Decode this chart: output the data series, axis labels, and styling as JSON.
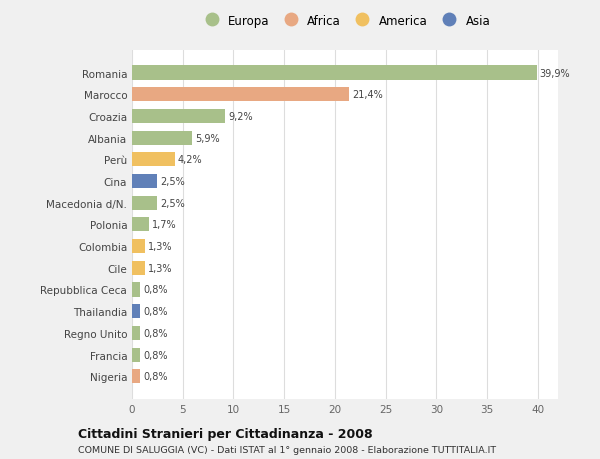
{
  "countries": [
    "Romania",
    "Marocco",
    "Croazia",
    "Albania",
    "Perù",
    "Cina",
    "Macedonia d/N.",
    "Polonia",
    "Colombia",
    "Cile",
    "Repubblica Ceca",
    "Thailandia",
    "Regno Unito",
    "Francia",
    "Nigeria"
  ],
  "values": [
    39.9,
    21.4,
    9.2,
    5.9,
    4.2,
    2.5,
    2.5,
    1.7,
    1.3,
    1.3,
    0.8,
    0.8,
    0.8,
    0.8,
    0.8
  ],
  "labels": [
    "39,9%",
    "21,4%",
    "9,2%",
    "5,9%",
    "4,2%",
    "2,5%",
    "2,5%",
    "1,7%",
    "1,3%",
    "1,3%",
    "0,8%",
    "0,8%",
    "0,8%",
    "0,8%",
    "0,8%"
  ],
  "continents": [
    "Europa",
    "Africa",
    "Europa",
    "Europa",
    "America",
    "Asia",
    "Europa",
    "Europa",
    "America",
    "America",
    "Europa",
    "Asia",
    "Europa",
    "Europa",
    "Africa"
  ],
  "continent_colors": {
    "Europa": "#a8c08a",
    "Africa": "#e8a882",
    "America": "#f0c060",
    "Asia": "#6080b8"
  },
  "legend_order": [
    "Europa",
    "Africa",
    "America",
    "Asia"
  ],
  "title": "Cittadini Stranieri per Cittadinanza - 2008",
  "subtitle": "COMUNE DI SALUGGIA (VC) - Dati ISTAT al 1° gennaio 2008 - Elaborazione TUTTITALIA.IT",
  "xlim": [
    0,
    42
  ],
  "xticks": [
    0,
    5,
    10,
    15,
    20,
    25,
    30,
    35,
    40
  ],
  "bg_color": "#f0f0f0",
  "plot_bg_color": "#ffffff",
  "grid_color": "#dddddd",
  "bar_height": 0.65
}
